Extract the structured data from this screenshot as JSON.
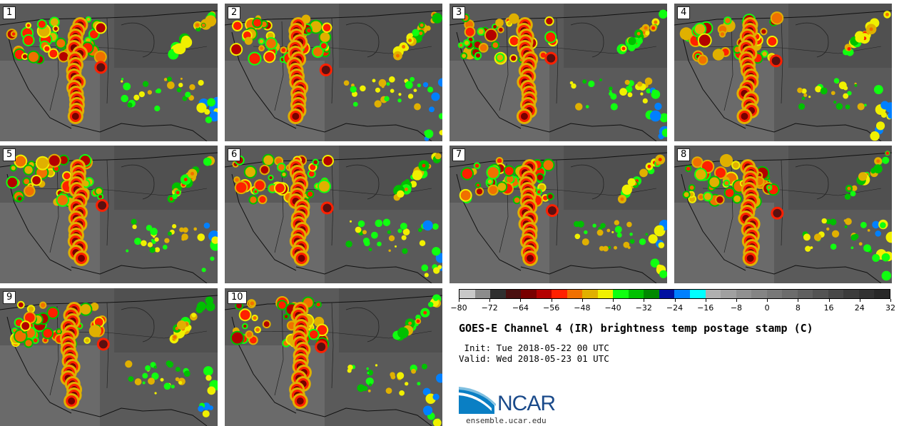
{
  "panels": [
    {
      "label": "1"
    },
    {
      "label": "2"
    },
    {
      "label": "3"
    },
    {
      "label": "4"
    },
    {
      "label": "5"
    },
    {
      "label": "6"
    },
    {
      "label": "7"
    },
    {
      "label": "8"
    },
    {
      "label": "9"
    },
    {
      "label": "10"
    }
  ],
  "colorbar": {
    "colors": [
      "#c8c8c8",
      "#8c8c8c",
      "#303030",
      "#4a1010",
      "#780000",
      "#b40000",
      "#ff2000",
      "#f07000",
      "#e0b000",
      "#f0f000",
      "#10ff10",
      "#00c000",
      "#008800",
      "#0010a0",
      "#0080ff",
      "#00ffff",
      "#b0b0b0",
      "#a0a0a0",
      "#909090",
      "#848484",
      "#787878",
      "#6c6c6c",
      "#606060",
      "#545454",
      "#484848",
      "#3c3c3c",
      "#323232",
      "#282828"
    ],
    "tick_labels": [
      "−80",
      "−72",
      "−64",
      "−56",
      "−48",
      "−40",
      "−32",
      "−24",
      "−16",
      "−8",
      "0",
      "8",
      "16",
      "24",
      "32"
    ]
  },
  "title": "GOES-E Channel 4 (IR) brightness temp postage stamp (C)",
  "init": " Init: Tue 2018-05-22 00 UTC",
  "valid": "Valid: Wed 2018-05-23 01 UTC",
  "logo": {
    "text": "NCAR",
    "url": "ensemble.ucar.edu"
  }
}
